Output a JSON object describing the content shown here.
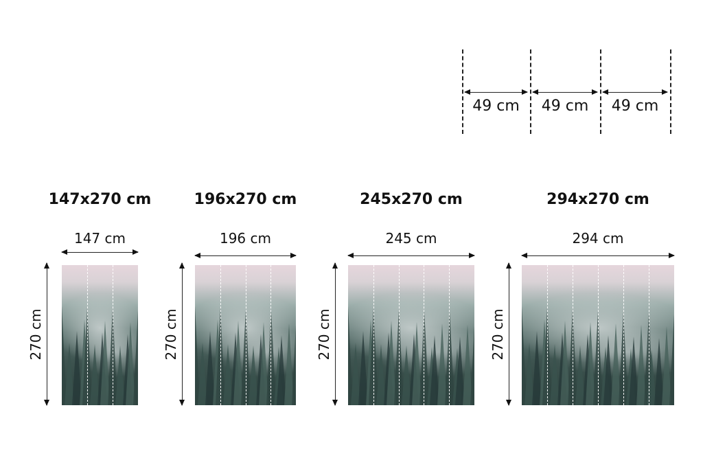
{
  "strip_legend": {
    "labels": [
      "49 cm",
      "49 cm",
      "49 cm"
    ]
  },
  "panels": [
    {
      "title": "147x270 cm",
      "width_label": "147 cm",
      "height_label": "270 cm",
      "strips": 3
    },
    {
      "title": "196x270 cm",
      "width_label": "196 cm",
      "height_label": "270 cm",
      "strips": 4
    },
    {
      "title": "245x270 cm",
      "width_label": "245 cm",
      "height_label": "270 cm",
      "strips": 5
    },
    {
      "title": "294x270 cm",
      "width_label": "294 cm",
      "height_label": "270 cm",
      "strips": 6
    }
  ],
  "image_subject": "misty-pine-forest"
}
